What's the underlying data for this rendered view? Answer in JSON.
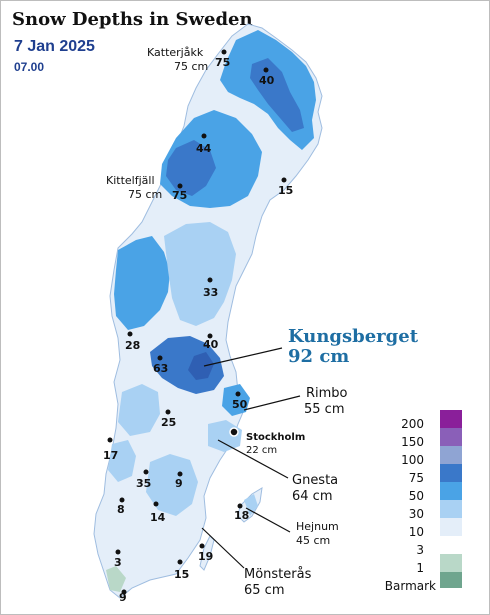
{
  "title": "Snow Depths in Sweden",
  "date": "7 Jan 2025",
  "time": "07.00",
  "colors": {
    "c10": "#e4eef9",
    "c30": "#a9d1f3",
    "c50": "#4aa3e6",
    "c75": "#3a78c9",
    "c100": "#8fa4d3",
    "c150": "#8a5fb8",
    "c200": "#8a1f9a",
    "c1": "#b9d8c8",
    "c3": "#b9d8c8",
    "barmark": "#6fa58e"
  },
  "callouts": [
    {
      "name": "Katterjåkk",
      "depth": "75 cm"
    },
    {
      "name": "Kittelfjäll",
      "depth": "75 cm"
    },
    {
      "name": "Kungsberget",
      "depth": "92 cm"
    },
    {
      "name": "Rimbo",
      "depth": "55 cm"
    },
    {
      "name": "Stockholm",
      "depth": "22 cm"
    },
    {
      "name": "Gnesta",
      "depth": "64 cm"
    },
    {
      "name": "Hejnum",
      "depth": "45 cm"
    },
    {
      "name": "Mönsterås",
      "depth": "65 cm"
    }
  ],
  "stations": [
    "75",
    "40",
    "44",
    "75",
    "15",
    "33",
    "28",
    "40",
    "63",
    "50",
    "25",
    "17",
    "35",
    "9",
    "8",
    "14",
    "18",
    "3",
    "19",
    "15",
    "9"
  ],
  "legend": [
    "200",
    "150",
    "100",
    "75",
    "50",
    "30",
    "10",
    "3",
    "1",
    "Barmark"
  ]
}
